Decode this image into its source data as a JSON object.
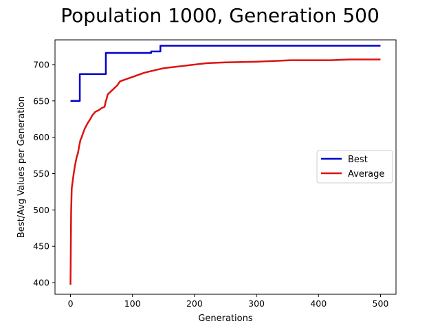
{
  "chart_data": {
    "type": "line",
    "title": "Population 1000, Generation 500",
    "xlabel": "Generations",
    "ylabel": "Best/Avg Values per Generation",
    "xlim": [
      -25,
      525
    ],
    "ylim": [
      384,
      734
    ],
    "xticks": [
      0,
      100,
      200,
      300,
      400,
      500
    ],
    "yticks": [
      400,
      450,
      500,
      550,
      600,
      650,
      700
    ],
    "grid": false,
    "legend_position": "right",
    "series": [
      {
        "name": "Best",
        "color": "#0000cc",
        "x": [
          0,
          15,
          15,
          57,
          57,
          130,
          130,
          145,
          145,
          500
        ],
        "y": [
          650,
          650,
          687,
          687,
          716,
          716,
          718,
          718,
          726,
          726
        ]
      },
      {
        "name": "Average",
        "color": "#dd1111",
        "x": [
          0,
          1,
          2,
          3,
          5,
          7,
          10,
          12,
          14,
          16,
          18,
          20,
          23,
          25,
          28,
          32,
          35,
          40,
          45,
          50,
          55,
          57,
          58,
          60,
          65,
          70,
          75,
          80,
          90,
          100,
          110,
          120,
          130,
          140,
          145,
          150,
          160,
          170,
          180,
          190,
          200,
          210,
          220,
          250,
          300,
          330,
          355,
          380,
          420,
          450,
          500
        ],
        "y": [
          397,
          497,
          530,
          536,
          549,
          560,
          573,
          578,
          588,
          596,
          600,
          605,
          612,
          615,
          620,
          625,
          630,
          635,
          637,
          640,
          642,
          650,
          652,
          659,
          663,
          667,
          671,
          677,
          680,
          683,
          686,
          689,
          691,
          693,
          694,
          695,
          696,
          697,
          698,
          699,
          700,
          701,
          702,
          703,
          704,
          705,
          706,
          706,
          706,
          707,
          707
        ]
      }
    ]
  }
}
